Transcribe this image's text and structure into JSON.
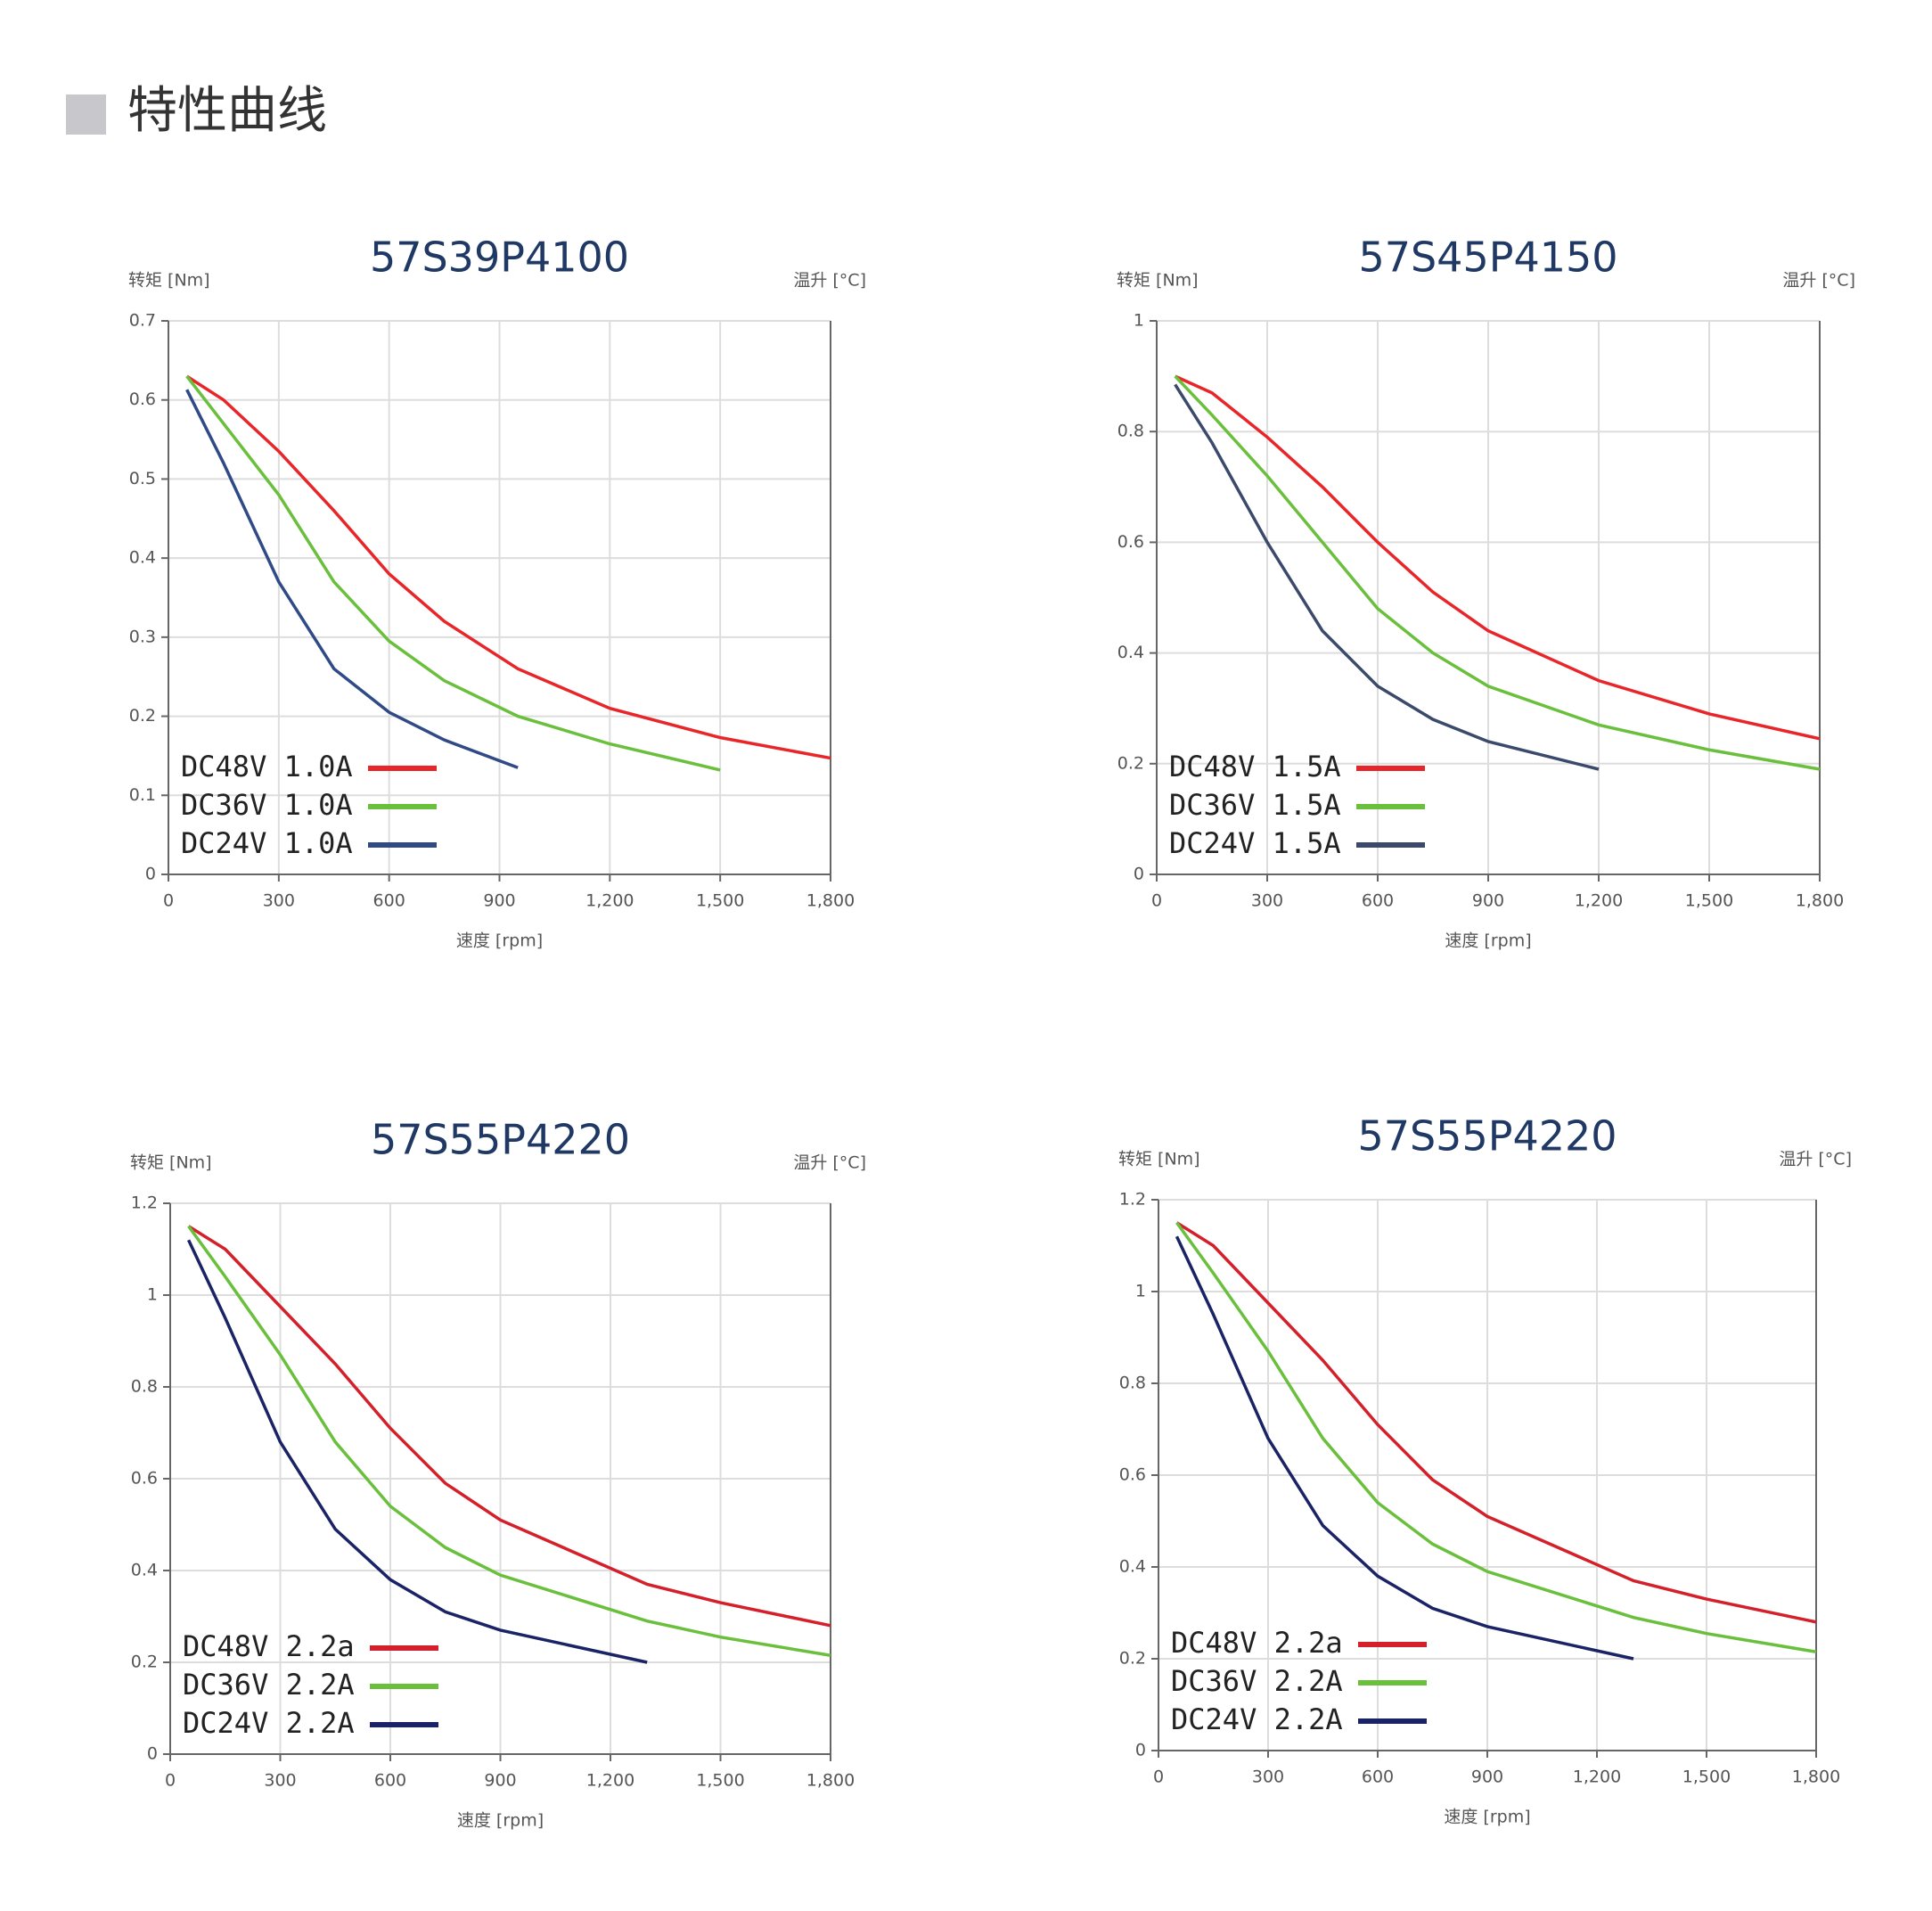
{
  "header": {
    "title": "特性曲线"
  },
  "chart_data": [
    {
      "type": "line",
      "title": "57S39P4100",
      "y_label": "转矩 [Nm]",
      "y2_label": "温升 [°C]",
      "x_label": "速度 [rpm]",
      "x": [
        50,
        150,
        300,
        450,
        600,
        750,
        950,
        1200,
        1500,
        1800
      ],
      "series": [
        {
          "name": "DC48V 1.0A",
          "color": "#e8262a",
          "values": [
            0.63,
            0.6,
            0.535,
            0.46,
            0.38,
            0.32,
            0.26,
            0.21,
            0.173,
            0.147
          ]
        },
        {
          "name": "DC36V 1.0A",
          "color": "#6abf3c",
          "values": [
            0.63,
            0.57,
            0.48,
            0.37,
            0.295,
            0.245,
            0.2,
            0.165,
            0.132,
            null
          ]
        },
        {
          "name": "DC24V 1.0A",
          "color": "#2f4a86",
          "values": [
            0.613,
            0.52,
            0.37,
            0.26,
            0.205,
            0.17,
            0.135,
            null,
            null,
            null
          ]
        }
      ],
      "xlim": [
        0,
        1800
      ],
      "xticks": [
        0,
        300,
        600,
        900,
        {
          "value": 1200,
          "label": "1,200"
        },
        {
          "value": 1500,
          "label": "1,500"
        },
        {
          "value": 1800,
          "label": "1,800"
        }
      ],
      "ylim": [
        0,
        0.7
      ],
      "yticks": [
        0,
        0.1,
        0.2,
        0.3,
        0.4,
        0.5,
        0.6,
        0.7
      ],
      "grid": true
    },
    {
      "type": "line",
      "title": "57S45P4150",
      "y_label": "转矩 [Nm]",
      "y2_label": "温升 [°C]",
      "x_label": "速度 [rpm]",
      "x": [
        50,
        150,
        300,
        450,
        600,
        750,
        900,
        1200,
        1500,
        1800
      ],
      "series": [
        {
          "name": "DC48V 1.5A",
          "color": "#e8262a",
          "values": [
            0.9,
            0.87,
            0.79,
            0.7,
            0.6,
            0.51,
            0.44,
            0.35,
            0.29,
            0.245
          ]
        },
        {
          "name": "DC36V 1.5A",
          "color": "#6abf3c",
          "values": [
            0.9,
            0.83,
            0.72,
            0.6,
            0.48,
            0.4,
            0.34,
            0.27,
            0.225,
            0.19
          ]
        },
        {
          "name": "DC24V 1.5A",
          "color": "#3b4a6b",
          "values": [
            0.885,
            0.78,
            0.6,
            0.44,
            0.34,
            0.28,
            0.24,
            0.19,
            null,
            null
          ]
        }
      ],
      "xlim": [
        0,
        1800
      ],
      "xticks": [
        0,
        300,
        600,
        900,
        {
          "value": 1200,
          "label": "1,200"
        },
        {
          "value": 1500,
          "label": "1,500"
        },
        {
          "value": 1800,
          "label": "1,800"
        }
      ],
      "ylim": [
        0,
        1
      ],
      "yticks": [
        0,
        0.2,
        0.4,
        0.6,
        0.8,
        1
      ],
      "grid": true
    },
    {
      "type": "line",
      "title": "57S55P4220",
      "y_label": "转矩 [Nm]",
      "y2_label": "温升 [°C]",
      "x_label": "速度 [rpm]",
      "x": [
        50,
        150,
        300,
        450,
        600,
        750,
        900,
        1300,
        1500,
        1800
      ],
      "series": [
        {
          "name": "DC48V 2.2a",
          "color": "#d4202a",
          "values": [
            1.15,
            1.1,
            0.975,
            0.85,
            0.71,
            0.59,
            0.51,
            0.37,
            0.33,
            0.28
          ]
        },
        {
          "name": "DC36V 2.2A",
          "color": "#6abf3c",
          "values": [
            1.15,
            1.04,
            0.87,
            0.68,
            0.54,
            0.45,
            0.39,
            0.29,
            0.255,
            0.215
          ]
        },
        {
          "name": "DC24V 2.2A",
          "color": "#1a2366",
          "values": [
            1.12,
            0.95,
            0.68,
            0.49,
            0.38,
            0.31,
            0.27,
            0.2,
            null,
            null
          ]
        }
      ],
      "xlim": [
        0,
        1800
      ],
      "xticks": [
        0,
        300,
        600,
        900,
        {
          "value": 1200,
          "label": "1,200"
        },
        {
          "value": 1500,
          "label": "1,500"
        },
        {
          "value": 1800,
          "label": "1,800"
        }
      ],
      "ylim": [
        0,
        1.2
      ],
      "yticks": [
        0,
        0.2,
        0.4,
        0.6,
        0.8,
        1,
        1.2
      ],
      "grid": true
    },
    {
      "type": "line",
      "title": "57S55P4220",
      "y_label": "转矩 [Nm]",
      "y2_label": "温升 [°C]",
      "x_label": "速度 [rpm]",
      "x": [
        50,
        150,
        300,
        450,
        600,
        750,
        900,
        1300,
        1500,
        1800
      ],
      "series": [
        {
          "name": "DC48V 2.2a",
          "color": "#d4202a",
          "values": [
            1.15,
            1.1,
            0.975,
            0.85,
            0.71,
            0.59,
            0.51,
            0.37,
            0.33,
            0.28
          ]
        },
        {
          "name": "DC36V 2.2A",
          "color": "#6abf3c",
          "values": [
            1.15,
            1.04,
            0.87,
            0.68,
            0.54,
            0.45,
            0.39,
            0.29,
            0.255,
            0.215
          ]
        },
        {
          "name": "DC24V 2.2A",
          "color": "#1a2366",
          "values": [
            1.12,
            0.95,
            0.68,
            0.49,
            0.38,
            0.31,
            0.27,
            0.2,
            null,
            null
          ]
        }
      ],
      "xlim": [
        0,
        1800
      ],
      "xticks": [
        0,
        300,
        600,
        900,
        {
          "value": 1200,
          "label": "1,200"
        },
        {
          "value": 1500,
          "label": "1,500"
        },
        {
          "value": 1800,
          "label": "1,800"
        }
      ],
      "ylim": [
        0,
        1.2
      ],
      "yticks": [
        0,
        0.2,
        0.4,
        0.6,
        0.8,
        1,
        1.2
      ],
      "grid": true
    }
  ]
}
